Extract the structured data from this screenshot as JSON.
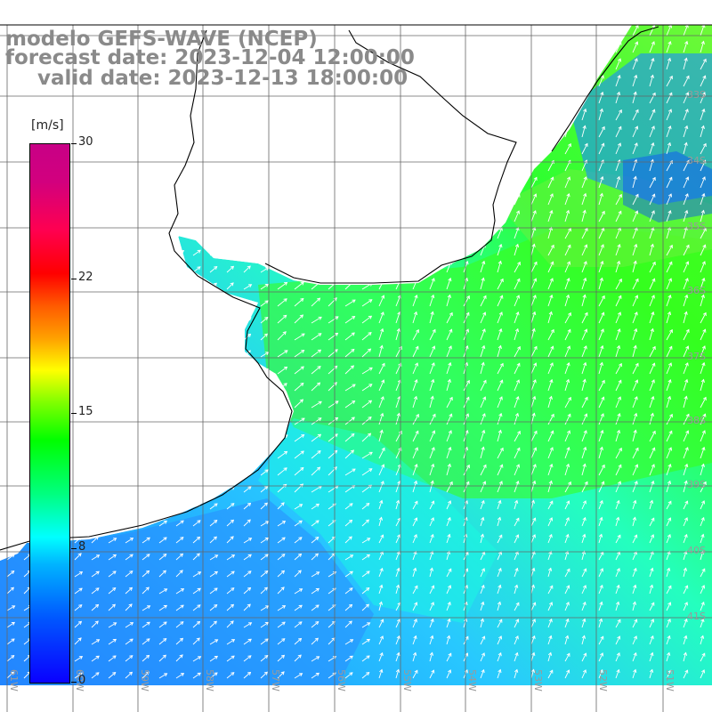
{
  "title": {
    "line1": "modelo GEFS-WAVE (NCEP)",
    "line2": "forecast date: 2023-12-04 12:00:00",
    "line3": "valid date: 2023-12-13 18:00:00"
  },
  "colorbar": {
    "unit": "[m/s]",
    "min": 0,
    "max": 30,
    "ticks": [
      "30",
      "22",
      "15",
      "8",
      "0"
    ],
    "colors": [
      "#0a00ff",
      "#00b4ff",
      "#00ffff",
      "#00ff00",
      "#ffff00",
      "#ff0000",
      "#c80086"
    ]
  },
  "map": {
    "lon_labels": [
      "61W",
      "60W",
      "59W",
      "58W",
      "57W",
      "56W",
      "55W",
      "54W",
      "53W",
      "52W",
      "51W"
    ],
    "lat_labels": [
      "33S",
      "34S",
      "35S",
      "36S",
      "37S",
      "38S",
      "39S",
      "40S",
      "41S"
    ],
    "field_colors": {
      "ocean_blue": "#2a8cff",
      "cyan": "#18ffe0",
      "green": "#3cff10",
      "land": "#ffffff"
    }
  }
}
